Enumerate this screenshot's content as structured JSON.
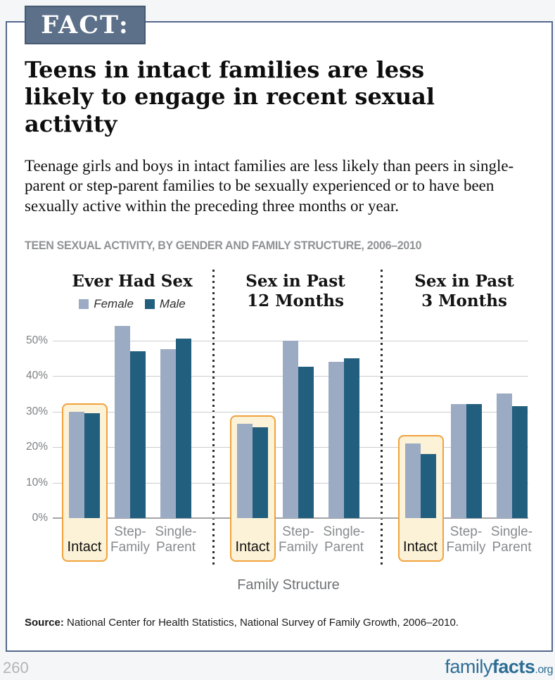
{
  "header": {
    "fact_label": "FACT:",
    "title": "Teens in intact families are less likely to engage in recent sexual activity",
    "description": "Teenage girls and boys in intact families are less likely than peers in single-parent or step-parent families to be sexually experienced or to have been sexually active within the preceding three months or year."
  },
  "chart_data": {
    "type": "bar",
    "title": "TEEN SEXUAL ACTIVITY, BY GENDER AND FAMILY STRUCTURE, 2006–2010",
    "xlabel": "Family Structure",
    "ylim": [
      0,
      55
    ],
    "yticks": [
      0,
      10,
      20,
      30,
      40,
      50
    ],
    "ytick_suffix": "%",
    "grid": true,
    "legend_position": "top-left-panel",
    "legend": [
      {
        "name": "Female",
        "color": "#9cabc4"
      },
      {
        "name": "Male",
        "color": "#225e7d"
      }
    ],
    "categories": [
      "Intact",
      "Step-Family",
      "Single-Parent"
    ],
    "highlighted_category": "Intact",
    "highlight_colors": {
      "fill": "#fcf2d8",
      "border": "#f0a23c"
    },
    "panels": [
      {
        "title": "Ever Had Sex",
        "series": [
          {
            "name": "Female",
            "values": [
              30,
              54,
              47.5
            ]
          },
          {
            "name": "Male",
            "values": [
              29.5,
              47,
              50.5
            ]
          }
        ]
      },
      {
        "title": "Sex in Past\n12 Months",
        "series": [
          {
            "name": "Female",
            "values": [
              26.5,
              50,
              44
            ]
          },
          {
            "name": "Male",
            "values": [
              25.5,
              42.5,
              45
            ]
          }
        ]
      },
      {
        "title": "Sex in Past\n3 Months",
        "series": [
          {
            "name": "Female",
            "values": [
              21,
              32,
              35
            ]
          },
          {
            "name": "Male",
            "values": [
              18,
              32,
              31.5
            ]
          }
        ]
      }
    ]
  },
  "footer": {
    "source_label": "Source:",
    "source_text": " National Center for Health Statistics, National Survey of Family Growth, 2006–2010.",
    "page_number": "260",
    "logo": {
      "family": "family",
      "facts": "facts",
      "org": ".org"
    }
  }
}
